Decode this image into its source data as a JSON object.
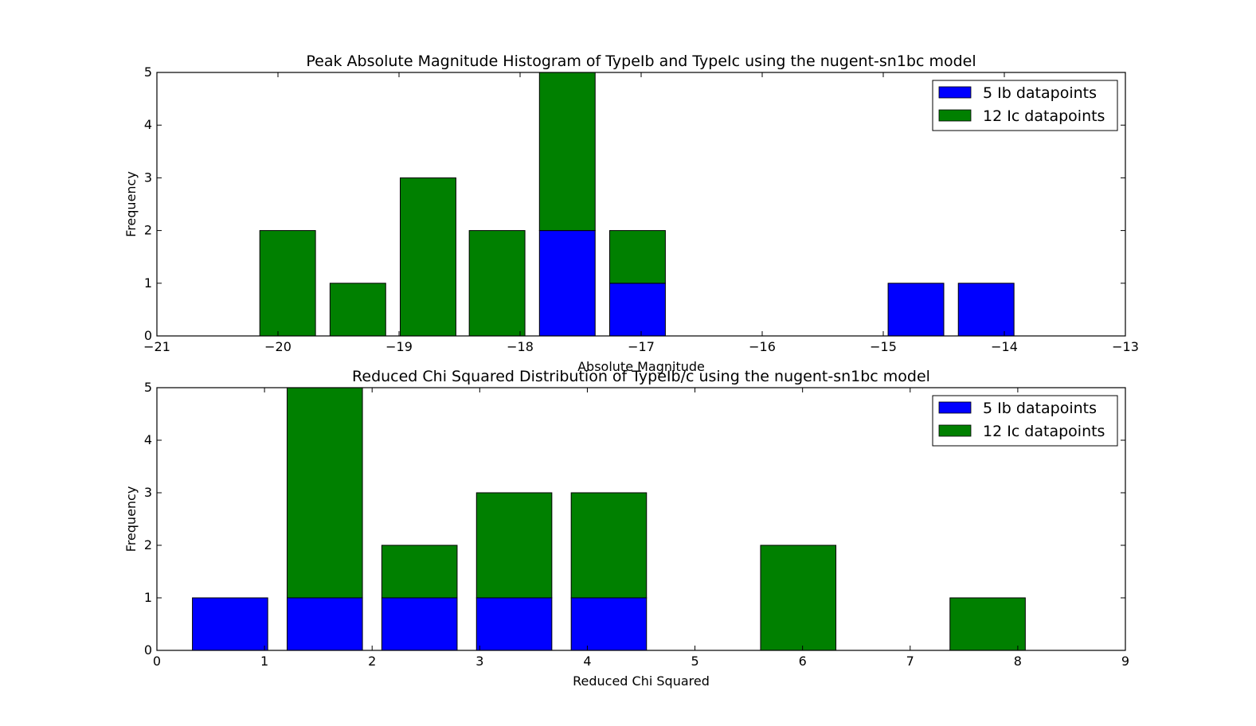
{
  "chart_data": [
    {
      "type": "bar",
      "stacked": true,
      "title": "Peak Absolute Magnitude Histogram of TypeIb and TypeIc using the nugent-sn1bc model",
      "xlabel": "Absolute Magnitude",
      "ylabel": "Frequency",
      "xlim": [
        -21,
        -13
      ],
      "ylim": [
        0,
        5
      ],
      "xticks": [
        -21,
        -20,
        -19,
        -18,
        -17,
        -16,
        -15,
        -14,
        -13
      ],
      "xtick_labels": [
        "−21",
        "−20",
        "−19",
        "−18",
        "−17",
        "−16",
        "−15",
        "−14",
        "−13"
      ],
      "yticks": [
        0,
        1,
        2,
        3,
        4,
        5
      ],
      "ytick_labels": [
        "0",
        "1",
        "2",
        "3",
        "4",
        "5"
      ],
      "bin_left_edges": [
        -20.15,
        -19.57,
        -18.99,
        -18.42,
        -17.84,
        -17.26,
        -16.69,
        -16.11,
        -15.53,
        -14.96,
        -14.38
      ],
      "bar_width": 0.46,
      "legend_position": "upper-right",
      "series": [
        {
          "name": "5 Ib datapoints",
          "color": "#0000ff",
          "values": [
            0,
            0,
            0,
            0,
            2,
            1,
            0,
            0,
            0,
            1,
            1
          ]
        },
        {
          "name": "12 Ic datapoints",
          "color": "#008000",
          "values": [
            2,
            1,
            3,
            2,
            3,
            1,
            0,
            0,
            0,
            0,
            0
          ]
        }
      ]
    },
    {
      "type": "bar",
      "stacked": true,
      "title": "Reduced Chi Squared Distribution of TypeIb/c using the nugent-sn1bc model",
      "xlabel": "Reduced Chi Squared",
      "ylabel": "Frequency",
      "xlim": [
        0,
        9
      ],
      "ylim": [
        0,
        5
      ],
      "xticks": [
        0,
        1,
        2,
        3,
        4,
        5,
        6,
        7,
        8,
        9
      ],
      "xtick_labels": [
        "0",
        "1",
        "2",
        "3",
        "4",
        "5",
        "6",
        "7",
        "8",
        "9"
      ],
      "yticks": [
        0,
        1,
        2,
        3,
        4,
        5
      ],
      "ytick_labels": [
        "0",
        "1",
        "2",
        "3",
        "4",
        "5"
      ],
      "bin_left_edges": [
        0.33,
        1.21,
        2.09,
        2.97,
        3.85,
        4.73,
        5.61,
        6.49,
        7.37
      ],
      "bar_width": 0.7,
      "legend_position": "upper-right",
      "series": [
        {
          "name": "5 Ib datapoints",
          "color": "#0000ff",
          "values": [
            1,
            1,
            1,
            1,
            1,
            0,
            0,
            0,
            0
          ]
        },
        {
          "name": "12 Ic datapoints",
          "color": "#008000",
          "values": [
            0,
            4,
            1,
            2,
            2,
            0,
            2,
            0,
            1
          ]
        }
      ]
    }
  ]
}
